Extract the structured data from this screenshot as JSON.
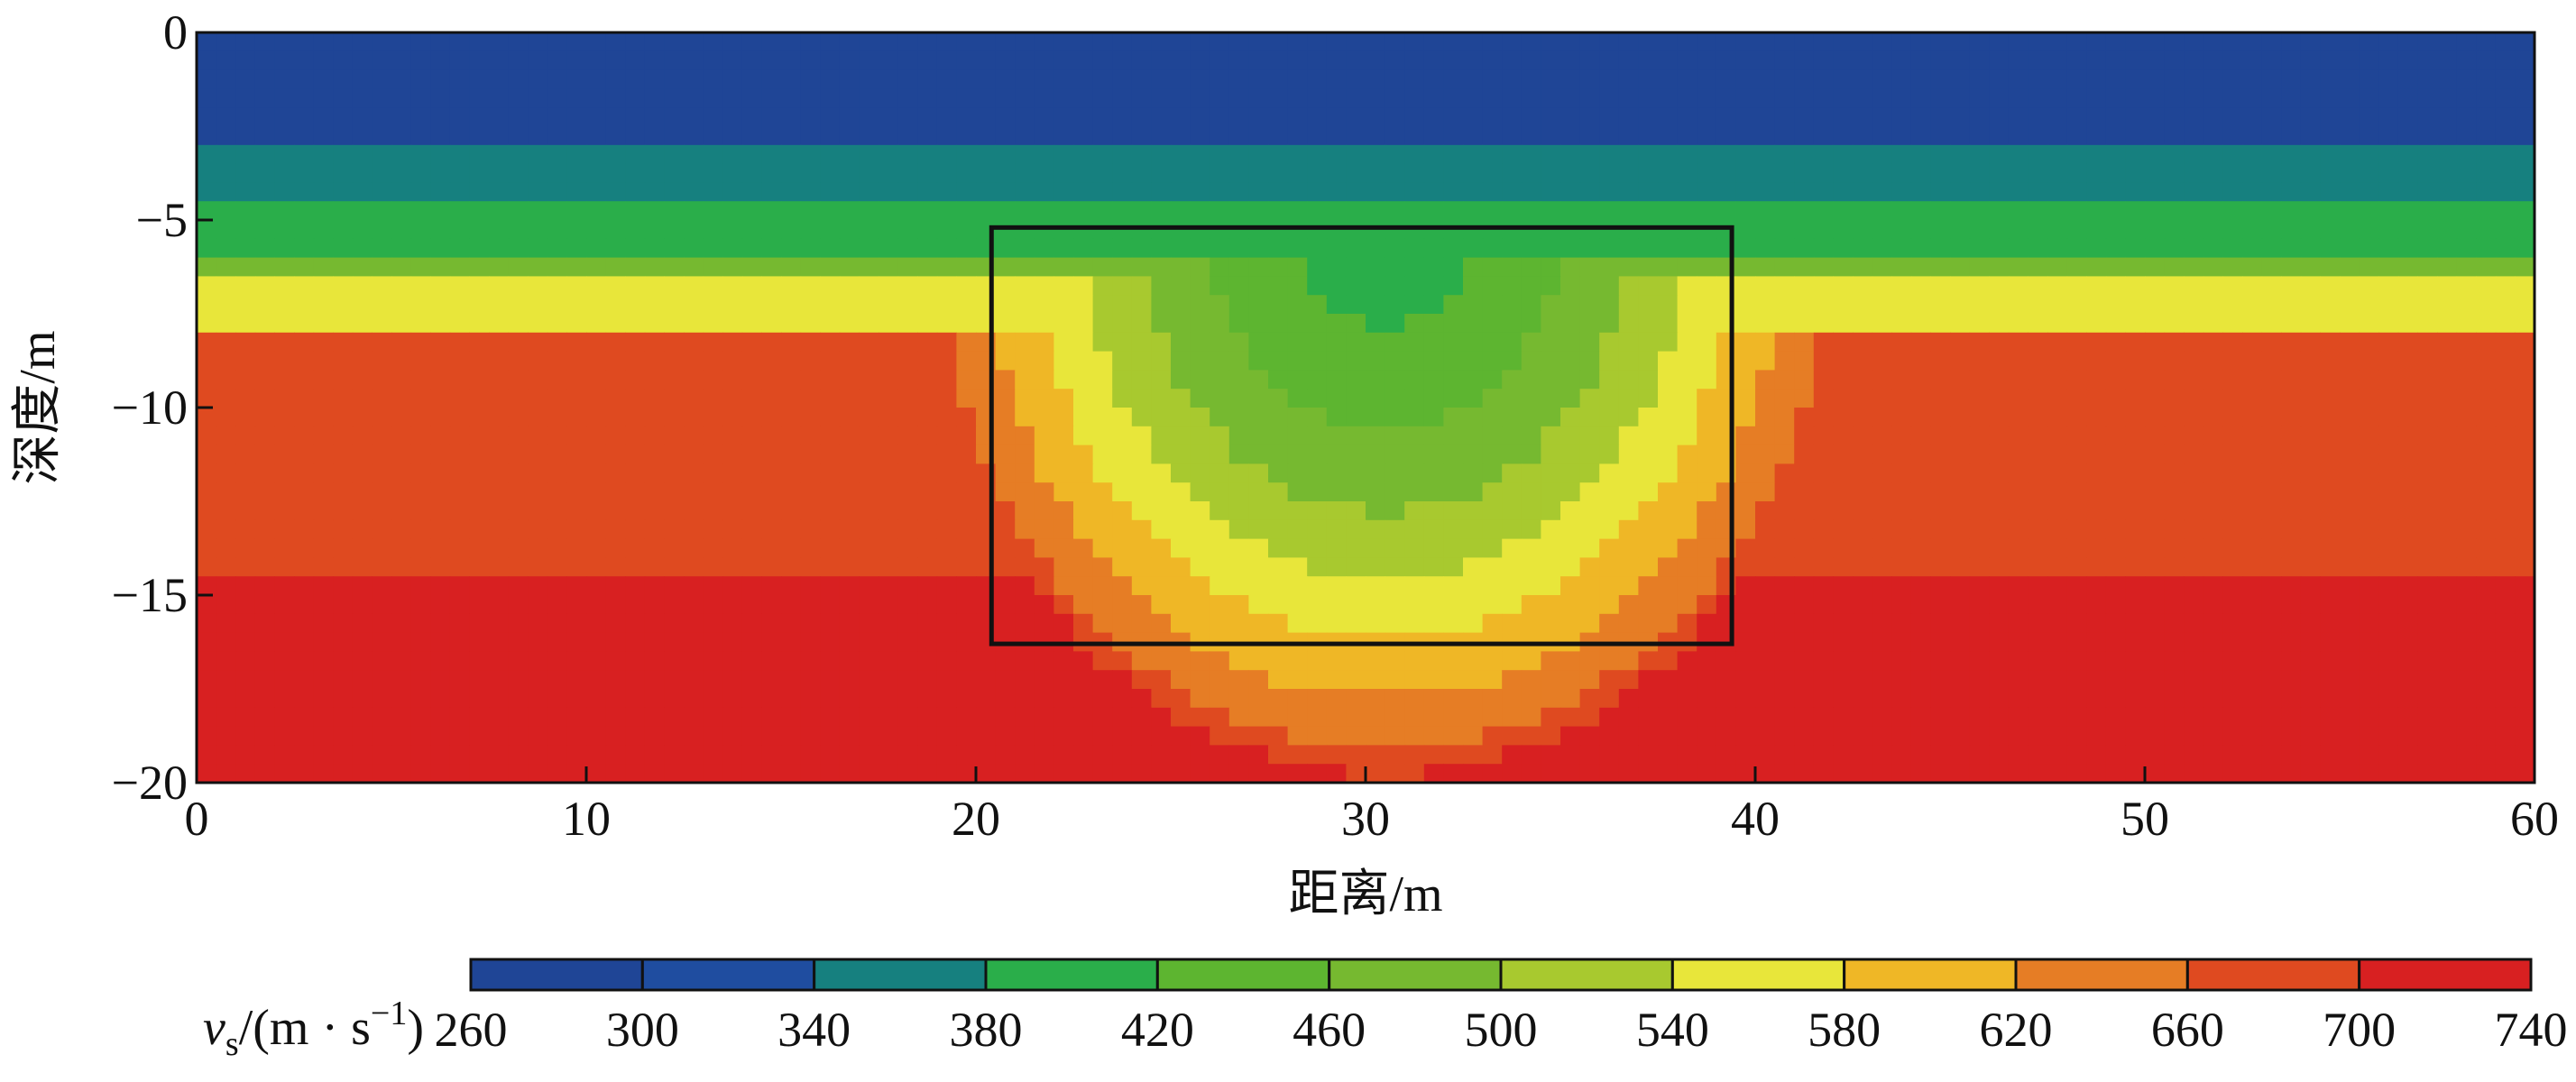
{
  "chart_data": {
    "type": "heatmap",
    "title": "",
    "xlabel": "距离/m",
    "ylabel": "深度/m",
    "xlim": [
      0,
      60
    ],
    "ylim": [
      -20,
      0
    ],
    "x_ticks": [
      "0",
      "10",
      "20",
      "30",
      "40",
      "50",
      "60"
    ],
    "y_ticks": [
      "0",
      "−5",
      "−10",
      "−15",
      "−20"
    ],
    "colorbar": {
      "label_var": "v",
      "label_sub": "s",
      "label_unit": "/(m · s",
      "label_sup": "−1",
      "label_close": ")",
      "ticks": [
        "260",
        "300",
        "340",
        "380",
        "420",
        "460",
        "500",
        "540",
        "580",
        "620",
        "660",
        "700",
        "740"
      ],
      "bins": [
        260,
        300,
        340,
        380,
        420,
        460,
        500,
        540,
        580,
        620,
        660,
        700,
        740
      ],
      "colors": [
        "#1f4596",
        "#1f4da0",
        "#16807f",
        "#2aae4a",
        "#5db530",
        "#76b930",
        "#a8c92f",
        "#e8e63a",
        "#efb726",
        "#e67d25",
        "#df4a20",
        "#d82021"
      ]
    },
    "annotation_box": {
      "x_range": [
        20.4,
        39.4
      ],
      "y_range": [
        -16.3,
        -5.2
      ]
    },
    "velocity_model": {
      "background_layers": [
        {
          "depth_top": 0,
          "depth_bottom": -3.2,
          "vs": 280
        },
        {
          "depth_top": -3.2,
          "depth_bottom": -4.6,
          "vs": 360
        },
        {
          "depth_top": -4.6,
          "depth_bottom": -5.8,
          "vs": 400
        },
        {
          "depth_top": -5.8,
          "depth_bottom": -6.6,
          "vs": 480
        },
        {
          "depth_top": -6.6,
          "depth_bottom": -7.9,
          "vs": 560
        },
        {
          "depth_top": -7.9,
          "depth_bottom": -20,
          "vs": 680
        }
      ],
      "deep_layer": {
        "depth_top": -14.5,
        "vs": 720
      },
      "anomaly": {
        "center_x": 30.5,
        "center_depth": -5.0,
        "core_vs": 400,
        "outer_vs": 680
      }
    }
  }
}
